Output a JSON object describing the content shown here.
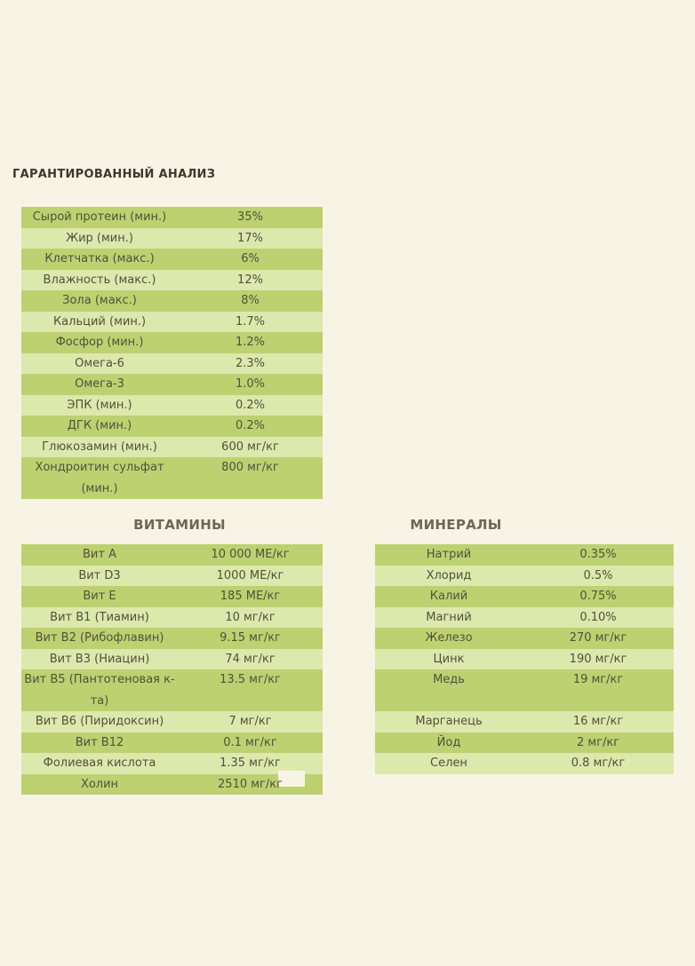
{
  "page": {
    "title": "ГАРАНТИРОВАННЫЙ АНАЛИЗ"
  },
  "colors": {
    "background": "#f8f4e5",
    "row_dark": "#bdd170",
    "row_light": "#dde8ad",
    "text": "#52503c",
    "heading_text": "#3c392c",
    "section_heading_text": "#6a6859"
  },
  "analysis": {
    "rows": [
      {
        "label": "Сырой протеин (мин.)",
        "value": "35%"
      },
      {
        "label": "Жир (мин.)",
        "value": "17%"
      },
      {
        "label": "Клетчатка (макс.)",
        "value": "6%"
      },
      {
        "label": "Влажность (макс.)",
        "value": "12%"
      },
      {
        "label": "Зола (макс.)",
        "value": "8%"
      },
      {
        "label": "Кальций (мин.)",
        "value": "1.7%"
      },
      {
        "label": "Фосфор (мин.)",
        "value": "1.2%"
      },
      {
        "label": "Омега-6",
        "value": "2.3%"
      },
      {
        "label": "Омега-3",
        "value": "1.0%"
      },
      {
        "label": "ЭПК (мин.)",
        "value": "0.2%"
      },
      {
        "label": "ДГК (мин.)",
        "value": "0.2%"
      },
      {
        "label": "Глюкозамин (мин.)",
        "value": "600 мг/кг"
      },
      {
        "label": "Хондроитин сульфат (мин.)",
        "value": "800 мг/кг"
      }
    ]
  },
  "vitamins": {
    "heading": "ВИТАМИНЫ",
    "rows": [
      {
        "label": "Вит A",
        "value": "10 000 МЕ/кг"
      },
      {
        "label": "Вит D3",
        "value": "1000 МЕ/кг"
      },
      {
        "label": "Вит E",
        "value": "185 МЕ/кг"
      },
      {
        "label": "Вит B1 (Тиамин)",
        "value": "10 мг/кг"
      },
      {
        "label": "Вит B2 (Рибофлавин)",
        "value": "9.15 мг/кг"
      },
      {
        "label": "Вит B3 (Ниацин)",
        "value": "74 мг/кг"
      },
      {
        "label": "Вит B5 (Пантотеновая к-та)",
        "value": "13.5 мг/кг"
      },
      {
        "label": "Вит B6 (Пиридоксин)",
        "value": "7 мг/кг"
      },
      {
        "label": "Вит B12",
        "value": "0.1 мг/кг"
      },
      {
        "label": "Фолиевая кислота",
        "value": "1.35 мг/кг"
      },
      {
        "label": "Холин",
        "value": "2510 мг/кг"
      }
    ]
  },
  "minerals": {
    "heading": "МИНЕРАЛЫ",
    "rows": [
      {
        "label": "Натрий",
        "value": "0.35%"
      },
      {
        "label": "Хлорид",
        "value": "0.5%"
      },
      {
        "label": "Калий",
        "value": "0.75%"
      },
      {
        "label": "Магний",
        "value": "0.10%"
      },
      {
        "label": "Железо",
        "value": "270 мг/кг"
      },
      {
        "label": "Цинк",
        "value": "190 мг/кг"
      },
      {
        "label": "Медь",
        "value": "19 мг/кг"
      },
      {
        "label": "Марганець",
        "value": "16 мг/кг"
      },
      {
        "label": "Йод",
        "value": "2 мг/кг"
      },
      {
        "label": "Селен",
        "value": "0.8 мг/кг"
      }
    ]
  }
}
